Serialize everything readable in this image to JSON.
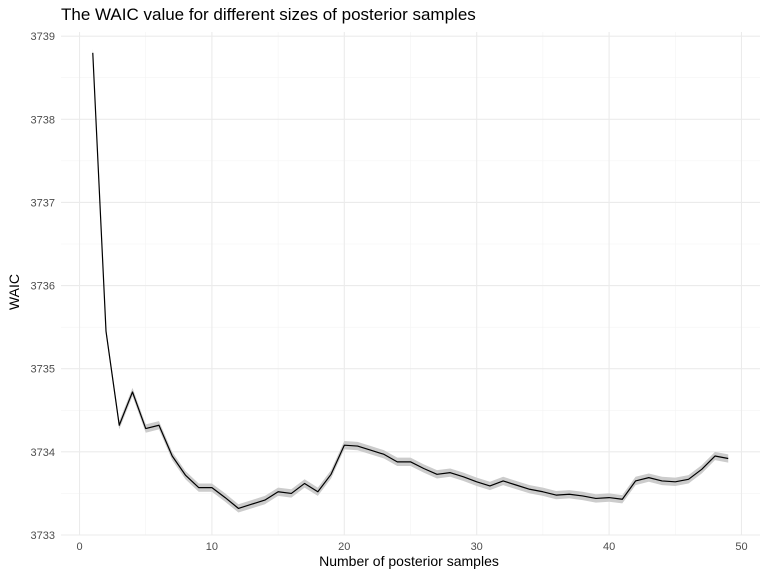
{
  "chart_data": {
    "type": "line",
    "title": "The WAIC value for different sizes of posterior samples",
    "xlabel": "Number of posterior samples",
    "ylabel": "WAIC",
    "xlim": [
      -1.4,
      51.4
    ],
    "ylim": [
      3733.0,
      3739.05
    ],
    "x_ticks": [
      0,
      10,
      20,
      30,
      40,
      50
    ],
    "y_ticks": [
      3733,
      3734,
      3735,
      3736,
      3737,
      3738,
      3739
    ],
    "grid": true,
    "band_halfwidth": 0.05,
    "colors": {
      "line": "#000000",
      "band": "#cccccc",
      "grid": "#ebebeb"
    },
    "series": [
      {
        "x": [
          1,
          2,
          3,
          4,
          5,
          6,
          7,
          8,
          9,
          10,
          11,
          12,
          13,
          14,
          15,
          16,
          17,
          18,
          19,
          20,
          21,
          22,
          23,
          24,
          25,
          26,
          27,
          28,
          29,
          30,
          31,
          32,
          33,
          34,
          35,
          36,
          37,
          38,
          39,
          40,
          41,
          42,
          43,
          44,
          45,
          46,
          47,
          48,
          49
        ],
        "values": [
          3738.8,
          3735.45,
          3734.32,
          3734.72,
          3734.28,
          3734.32,
          3733.95,
          3733.72,
          3733.57,
          3733.57,
          3733.45,
          3733.32,
          3733.37,
          3733.42,
          3733.52,
          3733.5,
          3733.62,
          3733.52,
          3733.73,
          3734.08,
          3734.07,
          3734.02,
          3733.97,
          3733.88,
          3733.88,
          3733.8,
          3733.73,
          3733.75,
          3733.7,
          3733.64,
          3733.59,
          3733.65,
          3733.6,
          3733.55,
          3733.52,
          3733.48,
          3733.49,
          3733.47,
          3733.44,
          3733.45,
          3733.43,
          3733.65,
          3733.69,
          3733.65,
          3733.64,
          3733.67,
          3733.79,
          3733.95,
          3733.92
        ]
      }
    ]
  }
}
